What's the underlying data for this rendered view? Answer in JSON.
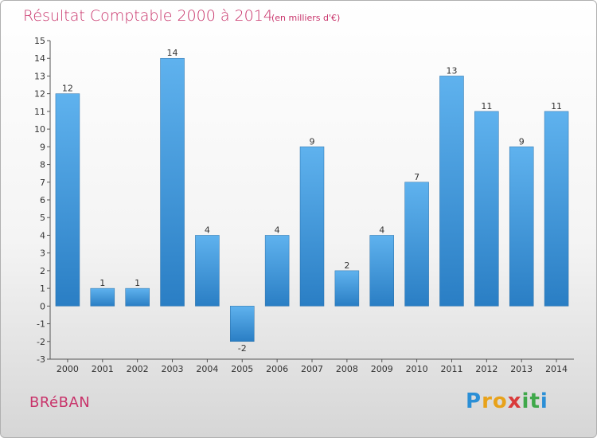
{
  "chart_data": {
    "type": "bar",
    "title": "Résultat Comptable 2000 à 2014",
    "unit": "(en milliers d'€)",
    "categories": [
      "2000",
      "2001",
      "2002",
      "2003",
      "2004",
      "2005",
      "2006",
      "2007",
      "2008",
      "2009",
      "2010",
      "2011",
      "2012",
      "2013",
      "2014"
    ],
    "values": [
      12,
      1,
      1,
      14,
      4,
      -2,
      4,
      9,
      2,
      4,
      7,
      13,
      11,
      9,
      11
    ],
    "ylim": [
      -3,
      15
    ],
    "yticks": [
      -3,
      -2,
      -1,
      0,
      1,
      2,
      3,
      4,
      5,
      6,
      7,
      8,
      9,
      10,
      11,
      12,
      13,
      14,
      15
    ],
    "xlabel": "",
    "ylabel": "",
    "bar_color_top": "#5fb2ee",
    "bar_color_bottom": "#2a7ec4",
    "title_color": "#c8336a"
  },
  "commune": "BRéBAN",
  "brand": {
    "letters": [
      "P",
      "r",
      "o",
      "x",
      "i",
      "t",
      "i"
    ],
    "colors": [
      "#2b8fd6",
      "#e8a21a",
      "#e8a21a",
      "#d93b3b",
      "#3fa84a",
      "#3fa84a",
      "#2b8fd6"
    ]
  }
}
